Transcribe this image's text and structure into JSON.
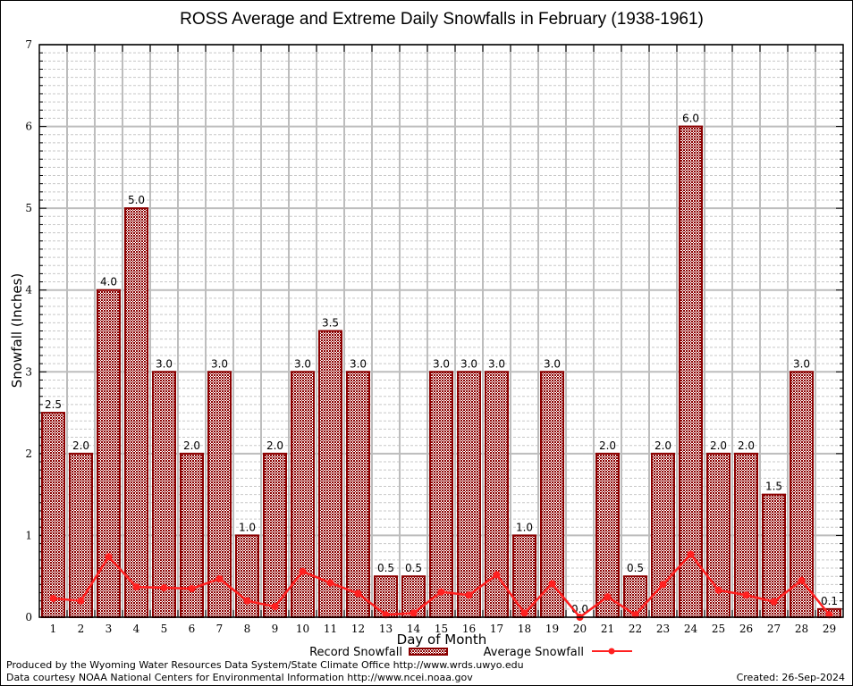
{
  "chart_data": {
    "type": "bar",
    "title": "ROSS Average and Extreme Daily Snowfalls in February (1938-1961)",
    "xlabel": "Day of Month",
    "ylabel": "Snowfall (Inches)",
    "ylim": [
      0,
      7
    ],
    "yticks": [
      "0",
      "1",
      "2",
      "3",
      "4",
      "5",
      "6",
      "7"
    ],
    "grid": true,
    "categories": [
      "1",
      "2",
      "3",
      "4",
      "5",
      "6",
      "7",
      "8",
      "9",
      "10",
      "11",
      "12",
      "13",
      "14",
      "15",
      "16",
      "17",
      "18",
      "19",
      "20",
      "21",
      "22",
      "23",
      "24",
      "25",
      "26",
      "27",
      "28",
      "29"
    ],
    "series": [
      {
        "name": "Record Snowfall",
        "type": "bar",
        "color": "#8b0000",
        "values": [
          2.5,
          2.0,
          4.0,
          5.0,
          3.0,
          2.0,
          3.0,
          1.0,
          2.0,
          3.0,
          3.5,
          3.0,
          0.5,
          0.5,
          3.0,
          3.0,
          3.0,
          1.0,
          3.0,
          0.0,
          2.0,
          0.5,
          2.0,
          6.0,
          2.0,
          2.0,
          1.5,
          3.0,
          0.1
        ],
        "labels": [
          "2.5",
          "2.0",
          "4.0",
          "5.0",
          "3.0",
          "2.0",
          "3.0",
          "1.0",
          "2.0",
          "3.0",
          "3.5",
          "3.0",
          "0.5",
          "0.5",
          "3.0",
          "3.0",
          "3.0",
          "1.0",
          "3.0",
          "0.0",
          "2.0",
          "0.5",
          "2.0",
          "6.0",
          "2.0",
          "2.0",
          "1.5",
          "3.0",
          "0.1"
        ]
      },
      {
        "name": "Average Snowfall",
        "type": "line",
        "color": "#ff2020",
        "values": [
          0.23,
          0.2,
          0.74,
          0.37,
          0.36,
          0.35,
          0.47,
          0.2,
          0.13,
          0.56,
          0.42,
          0.29,
          0.03,
          0.05,
          0.31,
          0.27,
          0.52,
          0.05,
          0.41,
          0.0,
          0.25,
          0.03,
          0.4,
          0.77,
          0.33,
          0.27,
          0.19,
          0.45,
          0.03
        ]
      }
    ],
    "legend": {
      "placement": "bottom-center",
      "entries": [
        "Record Snowfall",
        "Average Snowfall"
      ]
    }
  },
  "footer": {
    "line1": "Produced by the Wyoming Water Resources Data System/State Climate Office http://www.wrds.uwyo.edu",
    "line2": "Data courtesy NOAA National Centers for Environmental Information http://www.ncei.noaa.gov",
    "created": "Created: 26-Sep-2024"
  }
}
